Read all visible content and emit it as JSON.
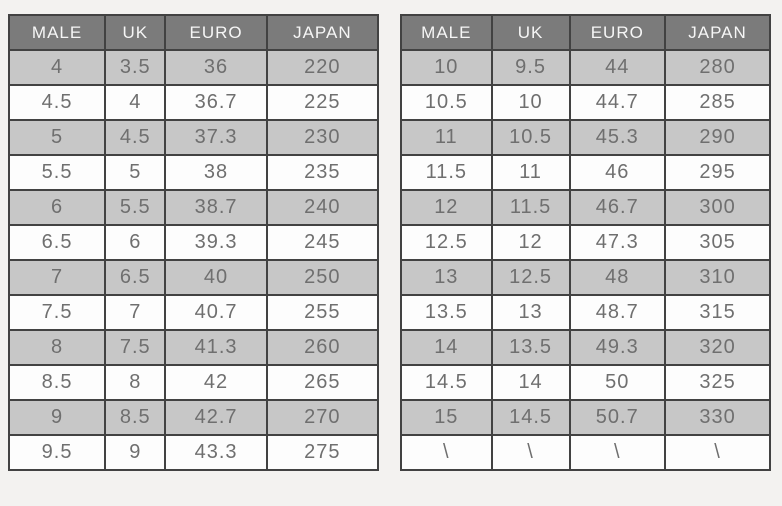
{
  "colors": {
    "page-bg": "#f3f2f0",
    "header-bg": "#7b7b7b",
    "header-text": "#f6f6f6",
    "row-shaded": "#c7c7c7",
    "row-plain": "#fdfdfd",
    "border": "#424242",
    "cell-text": "#6f6f6f"
  },
  "chart_data": [
    {
      "type": "table",
      "columns": [
        "MALE",
        "UK",
        "EURO",
        "JAPAN"
      ],
      "rows": [
        [
          "4",
          "3.5",
          "36",
          "220"
        ],
        [
          "4.5",
          "4",
          "36.7",
          "225"
        ],
        [
          "5",
          "4.5",
          "37.3",
          "230"
        ],
        [
          "5.5",
          "5",
          "38",
          "235"
        ],
        [
          "6",
          "5.5",
          "38.7",
          "240"
        ],
        [
          "6.5",
          "6",
          "39.3",
          "245"
        ],
        [
          "7",
          "6.5",
          "40",
          "250"
        ],
        [
          "7.5",
          "7",
          "40.7",
          "255"
        ],
        [
          "8",
          "7.5",
          "41.3",
          "260"
        ],
        [
          "8.5",
          "8",
          "42",
          "265"
        ],
        [
          "9",
          "8.5",
          "42.7",
          "270"
        ],
        [
          "9.5",
          "9",
          "43.3",
          "275"
        ]
      ]
    },
    {
      "type": "table",
      "columns": [
        "MALE",
        "UK",
        "EURO",
        "JAPAN"
      ],
      "rows": [
        [
          "10",
          "9.5",
          "44",
          "280"
        ],
        [
          "10.5",
          "10",
          "44.7",
          "285"
        ],
        [
          "11",
          "10.5",
          "45.3",
          "290"
        ],
        [
          "11.5",
          "11",
          "46",
          "295"
        ],
        [
          "12",
          "11.5",
          "46.7",
          "300"
        ],
        [
          "12.5",
          "12",
          "47.3",
          "305"
        ],
        [
          "13",
          "12.5",
          "48",
          "310"
        ],
        [
          "13.5",
          "13",
          "48.7",
          "315"
        ],
        [
          "14",
          "13.5",
          "49.3",
          "320"
        ],
        [
          "14.5",
          "14",
          "50",
          "325"
        ],
        [
          "15",
          "14.5",
          "50.7",
          "330"
        ],
        [
          "\\",
          "\\",
          "\\",
          "\\"
        ]
      ]
    }
  ]
}
